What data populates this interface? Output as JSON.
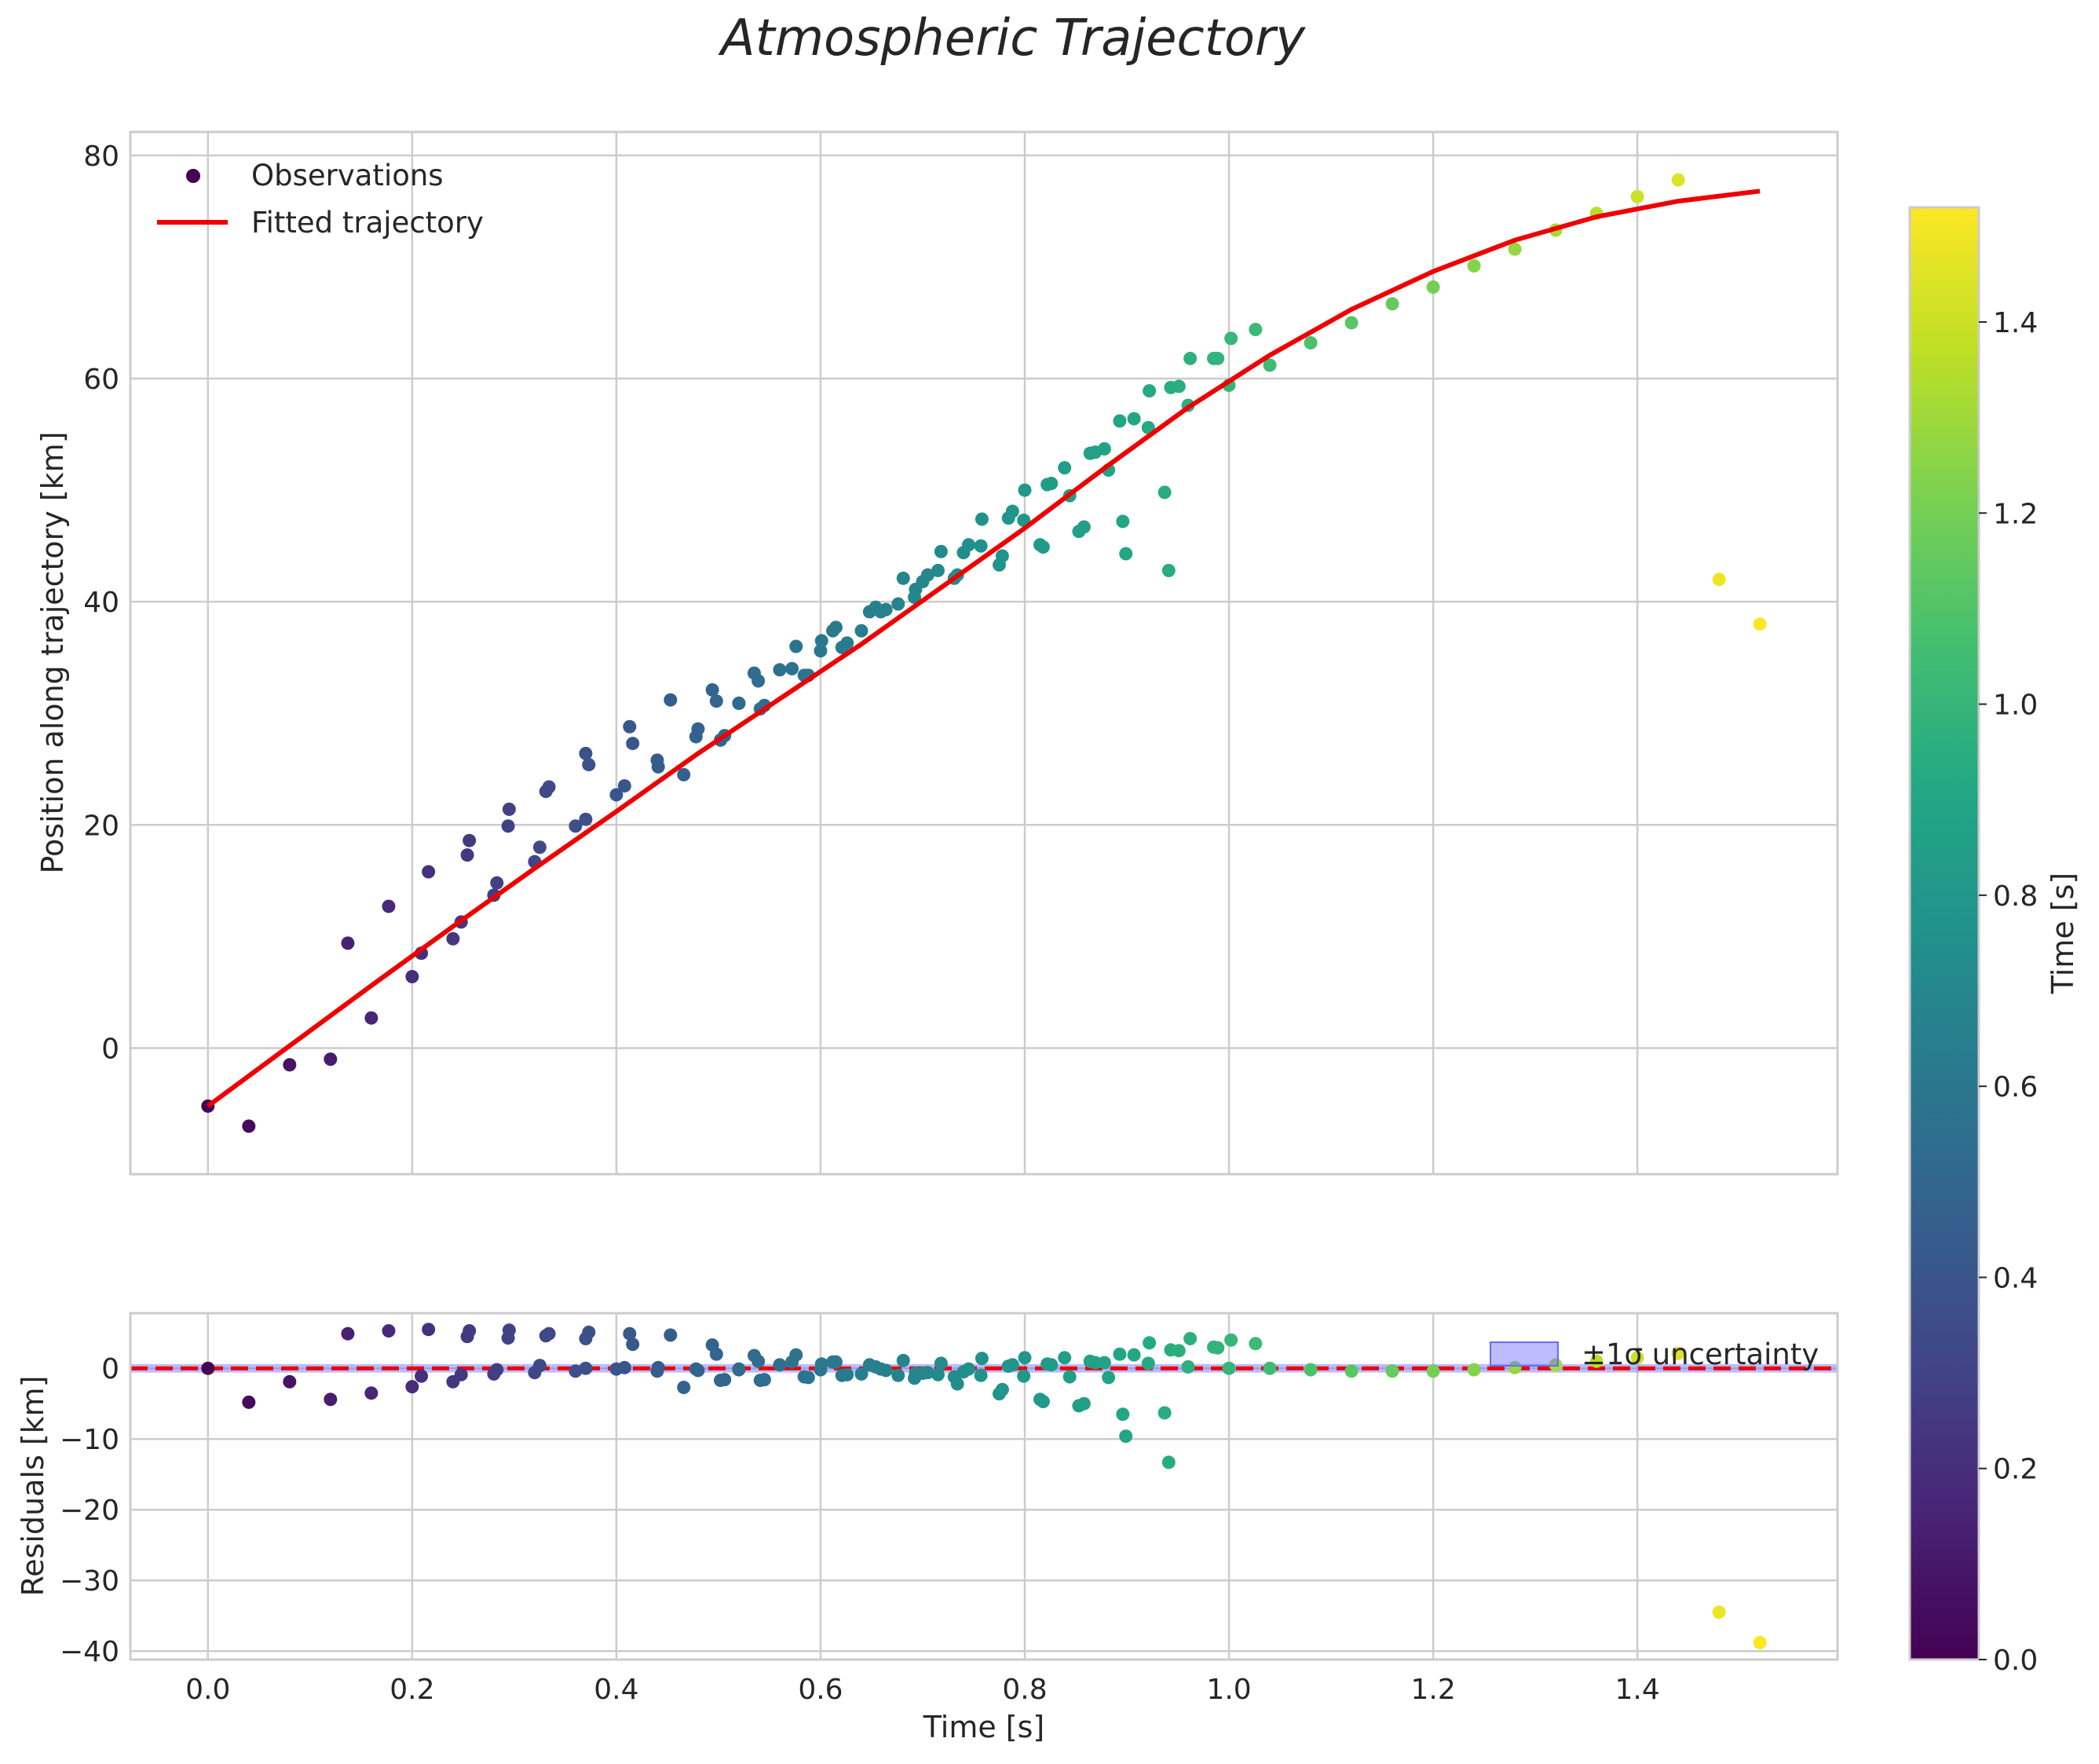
{
  "chart_data": [
    {
      "panel": "main",
      "type": "scatter",
      "title": "Atmospheric Trajectory",
      "xlabel": "",
      "ylabel": "Position along trajectory [km]",
      "xlim": [
        -0.076,
        1.596
      ],
      "ylim": [
        -11.3,
        82.1
      ],
      "xticks": [
        0.0,
        0.2,
        0.4,
        0.6,
        0.8,
        1.0,
        1.2,
        1.4
      ],
      "yticks": [
        0,
        20,
        40,
        60,
        80
      ],
      "ytick_labels": [
        "0",
        "20",
        "40",
        "60",
        "80"
      ],
      "grid": true,
      "legend": {
        "placement": "upper-left",
        "entries": [
          "Observations",
          "Fitted trajectory"
        ]
      },
      "series": [
        {
          "name": "Observations",
          "kind": "scatter",
          "colored_by": "Time [s]",
          "points": [
            [
              0.0,
              -5.2
            ],
            [
              0.04,
              -7.0
            ],
            [
              0.08,
              -1.5
            ],
            [
              0.12,
              -1.0
            ],
            [
              0.16,
              2.7
            ],
            [
              0.2,
              6.4
            ],
            [
              0.24,
              9.8
            ],
            [
              0.28,
              13.7
            ],
            [
              0.32,
              16.7
            ],
            [
              0.36,
              19.9
            ],
            [
              0.4,
              22.7
            ],
            [
              0.44,
              25.8
            ],
            [
              0.48,
              28.6
            ],
            [
              0.52,
              30.9
            ],
            [
              0.56,
              33.9
            ],
            [
              0.6,
              35.6
            ],
            [
              0.137,
              9.4
            ],
            [
              0.177,
              12.7
            ],
            [
              0.216,
              15.8
            ],
            [
              0.256,
              18.6
            ],
            [
              0.295,
              21.4
            ],
            [
              0.334,
              23.4
            ],
            [
              0.373,
              25.4
            ],
            [
              0.413,
              28.8
            ],
            [
              0.453,
              31.2
            ],
            [
              0.494,
              32.1
            ],
            [
              0.535,
              33.6
            ],
            [
              0.576,
              36.0
            ],
            [
              0.615,
              37.7
            ],
            [
              0.654,
              39.5
            ],
            [
              0.693,
              41.1
            ],
            [
              0.731,
              42.1
            ],
            [
              0.209,
              8.5
            ],
            [
              0.248,
              11.3
            ],
            [
              0.254,
              17.3
            ],
            [
              0.294,
              19.9
            ],
            [
              0.283,
              14.8
            ],
            [
              0.325,
              18.0
            ],
            [
              0.331,
              23.0
            ],
            [
              0.37,
              26.4
            ],
            [
              0.416,
              27.3
            ],
            [
              0.37,
              20.5
            ],
            [
              0.408,
              23.5
            ],
            [
              0.441,
              25.2
            ],
            [
              0.466,
              24.5
            ],
            [
              0.478,
              27.9
            ],
            [
              0.498,
              31.1
            ],
            [
              0.502,
              27.6
            ],
            [
              0.506,
              28.0
            ],
            [
              0.52,
              30.9
            ],
            [
              0.539,
              32.9
            ],
            [
              0.541,
              30.4
            ],
            [
              0.545,
              30.7
            ],
            [
              0.584,
              33.4
            ],
            [
              0.588,
              33.4
            ],
            [
              0.572,
              34.0
            ],
            [
              0.601,
              36.5
            ],
            [
              0.612,
              37.4
            ],
            [
              0.621,
              35.9
            ],
            [
              0.626,
              36.3
            ],
            [
              0.64,
              37.4
            ],
            [
              0.648,
              39.1
            ],
            [
              0.659,
              39.1
            ],
            [
              0.664,
              39.3
            ],
            [
              0.676,
              39.8
            ],
            [
              0.681,
              42.1
            ],
            [
              0.692,
              40.4
            ],
            [
              0.7,
              41.8
            ],
            [
              0.705,
              42.4
            ],
            [
              0.715,
              42.8
            ],
            [
              0.718,
              44.5
            ],
            [
              0.734,
              42.4
            ],
            [
              0.74,
              44.4
            ],
            [
              0.745,
              45.1
            ],
            [
              0.757,
              45.0
            ],
            [
              0.758,
              47.4
            ],
            [
              0.775,
              43.3
            ],
            [
              0.778,
              44.1
            ],
            [
              0.784,
              47.5
            ],
            [
              0.788,
              48.1
            ],
            [
              0.799,
              47.3
            ],
            [
              0.8,
              50.0
            ],
            [
              0.815,
              45.1
            ],
            [
              0.818,
              44.9
            ],
            [
              0.822,
              50.5
            ],
            [
              0.826,
              50.6
            ],
            [
              0.839,
              52.0
            ],
            [
              0.844,
              49.5
            ],
            [
              0.853,
              46.3
            ],
            [
              0.858,
              46.7
            ],
            [
              0.864,
              53.3
            ],
            [
              0.869,
              53.4
            ],
            [
              0.878,
              53.7
            ],
            [
              0.882,
              51.8
            ],
            [
              0.893,
              56.2
            ],
            [
              0.896,
              47.2
            ],
            [
              0.899,
              44.3
            ],
            [
              0.907,
              56.4
            ],
            [
              0.921,
              55.6
            ],
            [
              0.922,
              58.9
            ],
            [
              0.937,
              49.8
            ],
            [
              0.941,
              42.8
            ],
            [
              0.943,
              59.2
            ],
            [
              0.951,
              59.3
            ],
            [
              0.96,
              57.6
            ],
            [
              0.962,
              61.8
            ],
            [
              0.985,
              61.8
            ],
            [
              0.989,
              61.8
            ],
            [
              1.002,
              63.6
            ],
            [
              1.026,
              64.4
            ],
            [
              1.0,
              59.4
            ],
            [
              1.04,
              61.2
            ],
            [
              1.08,
              63.2
            ],
            [
              1.12,
              65.0
            ],
            [
              1.16,
              66.7
            ],
            [
              1.2,
              68.2
            ],
            [
              1.24,
              70.1
            ],
            [
              1.28,
              71.6
            ],
            [
              1.32,
              73.3
            ],
            [
              1.36,
              74.8
            ],
            [
              1.4,
              76.3
            ],
            [
              1.44,
              77.8
            ],
            [
              1.48,
              42.0
            ],
            [
              1.52,
              38.0
            ]
          ]
        },
        {
          "name": "Fitted trajectory",
          "kind": "line",
          "color": "#ee0000",
          "points": [
            [
              0.0,
              -5.2
            ],
            [
              0.08,
              0.2
            ],
            [
              0.16,
              5.6
            ],
            [
              0.24,
              10.9
            ],
            [
              0.32,
              16.1
            ],
            [
              0.4,
              21.2
            ],
            [
              0.48,
              26.4
            ],
            [
              0.56,
              31.3
            ],
            [
              0.64,
              36.2
            ],
            [
              0.72,
              41.4
            ],
            [
              0.8,
              46.6
            ],
            [
              0.88,
              52.1
            ],
            [
              0.96,
              57.4
            ],
            [
              1.04,
              62.1
            ],
            [
              1.12,
              66.2
            ],
            [
              1.2,
              69.6
            ],
            [
              1.28,
              72.4
            ],
            [
              1.36,
              74.5
            ],
            [
              1.44,
              75.9
            ],
            [
              1.52,
              76.8
            ]
          ]
        }
      ]
    },
    {
      "panel": "residuals",
      "type": "scatter",
      "xlabel": "Time [s]",
      "ylabel": "Residuals [km]",
      "xlim": [
        -0.076,
        1.596
      ],
      "ylim": [
        -41.2,
        7.8
      ],
      "xticks": [
        0.0,
        0.2,
        0.4,
        0.6,
        0.8,
        1.0,
        1.2,
        1.4
      ],
      "xtick_labels": [
        "0.0",
        "0.2",
        "0.4",
        "0.6",
        "0.8",
        "1.0",
        "1.2",
        "1.4"
      ],
      "yticks": [
        0,
        -10,
        -20,
        -30,
        -40
      ],
      "ytick_labels": [
        "0",
        "−10",
        "−20",
        "−30",
        "−40"
      ],
      "grid": true,
      "reference_line": {
        "y": 0,
        "style": "dashed",
        "color": "#ee0000"
      },
      "uncertainty_band": {
        "label": "±1σ uncertainty",
        "sigma": 0.6,
        "color": "#6a6aff"
      },
      "legend": {
        "placement": "upper-right",
        "entries": [
          "±1σ uncertainty"
        ]
      },
      "points": [
        [
          0.0,
          0.0
        ],
        [
          0.04,
          -4.8
        ],
        [
          0.08,
          -1.9
        ],
        [
          0.12,
          -4.4
        ],
        [
          0.16,
          -3.5
        ],
        [
          0.2,
          -2.6
        ],
        [
          0.24,
          -1.9
        ],
        [
          0.28,
          -0.8
        ],
        [
          0.32,
          -0.6
        ],
        [
          0.36,
          -0.4
        ],
        [
          0.4,
          -0.1
        ],
        [
          0.44,
          -0.4
        ],
        [
          0.48,
          -0.3
        ],
        [
          0.52,
          -0.2
        ],
        [
          0.56,
          0.5
        ],
        [
          0.6,
          -0.2
        ],
        [
          0.137,
          4.9
        ],
        [
          0.177,
          5.3
        ],
        [
          0.216,
          5.5
        ],
        [
          0.256,
          5.3
        ],
        [
          0.295,
          5.4
        ],
        [
          0.334,
          4.9
        ],
        [
          0.373,
          5.1
        ],
        [
          0.413,
          4.9
        ],
        [
          0.453,
          4.7
        ],
        [
          0.494,
          3.3
        ],
        [
          0.535,
          1.8
        ],
        [
          0.576,
          1.9
        ],
        [
          0.615,
          0.9
        ],
        [
          0.654,
          0.2
        ],
        [
          0.693,
          -0.7
        ],
        [
          0.731,
          -1.2
        ],
        [
          0.209,
          -1.1
        ],
        [
          0.248,
          -0.9
        ],
        [
          0.254,
          4.5
        ],
        [
          0.294,
          4.3
        ],
        [
          0.283,
          -0.2
        ],
        [
          0.325,
          0.4
        ],
        [
          0.331,
          4.6
        ],
        [
          0.37,
          4.2
        ],
        [
          0.416,
          3.4
        ],
        [
          0.37,
          0.0
        ],
        [
          0.408,
          0.1
        ],
        [
          0.441,
          0.1
        ],
        [
          0.466,
          -2.7
        ],
        [
          0.478,
          -0.1
        ],
        [
          0.498,
          2.0
        ],
        [
          0.502,
          -1.7
        ],
        [
          0.506,
          -1.6
        ],
        [
          0.52,
          -0.1
        ],
        [
          0.539,
          1.0
        ],
        [
          0.541,
          -1.7
        ],
        [
          0.545,
          -1.6
        ],
        [
          0.584,
          -1.2
        ],
        [
          0.588,
          -1.3
        ],
        [
          0.572,
          0.9
        ],
        [
          0.601,
          0.6
        ],
        [
          0.612,
          0.9
        ],
        [
          0.621,
          -1.0
        ],
        [
          0.626,
          -0.9
        ],
        [
          0.64,
          -0.8
        ],
        [
          0.648,
          0.5
        ],
        [
          0.659,
          -0.1
        ],
        [
          0.664,
          -0.3
        ],
        [
          0.676,
          -1.0
        ],
        [
          0.681,
          1.1
        ],
        [
          0.692,
          -1.4
        ],
        [
          0.7,
          -0.7
        ],
        [
          0.705,
          -0.6
        ],
        [
          0.715,
          -0.9
        ],
        [
          0.718,
          0.7
        ],
        [
          0.734,
          -2.2
        ],
        [
          0.74,
          -0.5
        ],
        [
          0.745,
          -0.1
        ],
        [
          0.757,
          -1.0
        ],
        [
          0.758,
          1.4
        ],
        [
          0.775,
          -3.6
        ],
        [
          0.778,
          -3.0
        ],
        [
          0.784,
          0.3
        ],
        [
          0.788,
          0.5
        ],
        [
          0.799,
          -1.1
        ],
        [
          0.8,
          1.5
        ],
        [
          0.815,
          -4.4
        ],
        [
          0.818,
          -4.7
        ],
        [
          0.822,
          0.6
        ],
        [
          0.826,
          0.5
        ],
        [
          0.839,
          1.5
        ],
        [
          0.844,
          -1.2
        ],
        [
          0.853,
          -5.3
        ],
        [
          0.858,
          -5.0
        ],
        [
          0.864,
          1.0
        ],
        [
          0.869,
          0.8
        ],
        [
          0.878,
          0.8
        ],
        [
          0.882,
          -1.3
        ],
        [
          0.893,
          2.0
        ],
        [
          0.896,
          -6.5
        ],
        [
          0.899,
          -9.6
        ],
        [
          0.907,
          1.9
        ],
        [
          0.921,
          0.7
        ],
        [
          0.922,
          3.6
        ],
        [
          0.937,
          -6.3
        ],
        [
          0.941,
          -13.3
        ],
        [
          0.943,
          2.6
        ],
        [
          0.951,
          2.5
        ],
        [
          0.96,
          0.2
        ],
        [
          0.962,
          4.2
        ],
        [
          0.985,
          3.0
        ],
        [
          0.989,
          2.9
        ],
        [
          1.002,
          4.0
        ],
        [
          1.026,
          3.5
        ],
        [
          1.0,
          0.0
        ],
        [
          1.04,
          0.0
        ],
        [
          1.08,
          -0.2
        ],
        [
          1.12,
          -0.4
        ],
        [
          1.16,
          -0.4
        ],
        [
          1.2,
          -0.4
        ],
        [
          1.24,
          -0.2
        ],
        [
          1.28,
          0.1
        ],
        [
          1.32,
          0.5
        ],
        [
          1.36,
          1.0
        ],
        [
          1.4,
          1.5
        ],
        [
          1.44,
          2.1
        ],
        [
          1.48,
          -34.5
        ],
        [
          1.52,
          -38.8
        ]
      ]
    },
    {
      "panel": "colorbar",
      "type": "colorbar",
      "label": "Time [s]",
      "colormap": "viridis",
      "range": [
        0.0,
        1.52
      ],
      "ticks": [
        0.0,
        0.2,
        0.4,
        0.6,
        0.8,
        1.0,
        1.2,
        1.4
      ],
      "tick_labels": [
        "0.0",
        "0.2",
        "0.4",
        "0.6",
        "0.8",
        "1.0",
        "1.2",
        "1.4"
      ]
    }
  ]
}
